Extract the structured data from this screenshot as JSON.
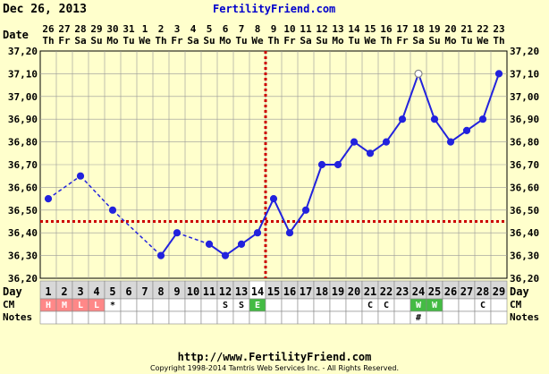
{
  "header": {
    "date": "Dec 26, 2013",
    "site": "FertilityFriend.com"
  },
  "footer": {
    "url": "http://www.FertilityFriend.com",
    "copyright": "Copyright 1998-2014 Tamtris Web Services Inc. - All Rights Reserved."
  },
  "labels": {
    "date": "Date",
    "day": "Day",
    "cm": "CM",
    "notes": "Notes"
  },
  "colors": {
    "background": "#ffffcc",
    "grid": "#999999",
    "line": "#2222dd",
    "coverline": "#cc0000",
    "cm_h": "#ff8888",
    "cm_w": "#44bb44",
    "cm_e": "#44bb44"
  },
  "chart_data": {
    "type": "line",
    "ylim": [
      36.2,
      37.2
    ],
    "yticks": [
      "37,20",
      "37,10",
      "37,00",
      "36,90",
      "36,80",
      "36,70",
      "36,60",
      "36,50",
      "36,40",
      "36,30",
      "36,20"
    ],
    "dates": [
      "26",
      "27",
      "28",
      "29",
      "30",
      "31",
      "1",
      "2",
      "3",
      "4",
      "5",
      "6",
      "7",
      "8",
      "9",
      "10",
      "11",
      "12",
      "13",
      "14",
      "15",
      "16",
      "17",
      "18",
      "19",
      "20",
      "21",
      "22",
      "23"
    ],
    "weekdays": [
      "Th",
      "Fr",
      "Sa",
      "Su",
      "Mo",
      "Tu",
      "We",
      "Th",
      "Fr",
      "Sa",
      "Su",
      "Mo",
      "Tu",
      "We",
      "Th",
      "Fr",
      "Sa",
      "Su",
      "Mo",
      "Tu",
      "We",
      "Th",
      "Fr",
      "Sa",
      "Su",
      "Mo",
      "Tu",
      "We",
      "Th"
    ],
    "cycle_days": [
      "1",
      "2",
      "3",
      "4",
      "5",
      "6",
      "7",
      "8",
      "9",
      "10",
      "11",
      "12",
      "13",
      "14",
      "15",
      "16",
      "17",
      "18",
      "19",
      "20",
      "21",
      "22",
      "23",
      "24",
      "25",
      "26",
      "27",
      "28",
      "29"
    ],
    "temps": [
      36.55,
      null,
      36.65,
      null,
      36.5,
      null,
      null,
      36.3,
      36.4,
      null,
      36.35,
      36.3,
      36.35,
      36.4,
      36.55,
      36.4,
      36.5,
      36.7,
      36.7,
      36.8,
      36.75,
      36.8,
      36.9,
      37.1,
      36.9,
      36.8,
      36.85,
      36.9,
      37.1
    ],
    "open_circle_day": 24,
    "coverline": 36.45,
    "ovulation_day": 14,
    "cm": [
      "H",
      "M",
      "L",
      "L",
      "*",
      "",
      "",
      "",
      "",
      "",
      "",
      "S",
      "S",
      "E",
      "",
      "",
      "",
      "",
      "",
      "",
      "C",
      "C",
      "",
      "W",
      "W",
      "",
      "",
      "C",
      ""
    ],
    "notes": [
      "",
      "",
      "",
      "",
      "",
      "",
      "",
      "",
      "",
      "",
      "",
      "",
      "",
      "",
      "",
      "",
      "",
      "",
      "",
      "",
      "",
      "",
      "",
      "#",
      "",
      "",
      "",
      "",
      ""
    ]
  }
}
